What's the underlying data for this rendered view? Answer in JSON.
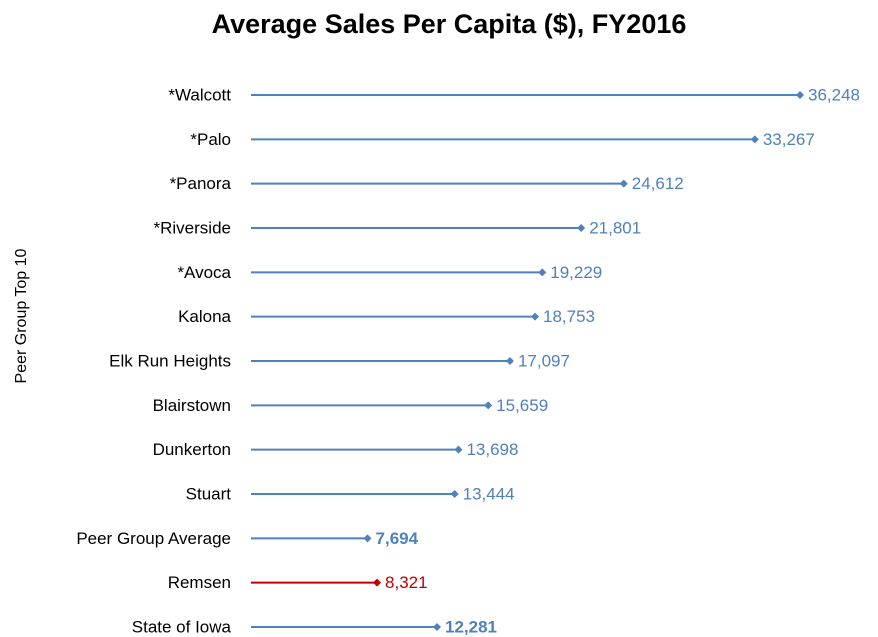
{
  "chart_data": {
    "type": "lollipop",
    "orientation": "horizontal",
    "title": "Average Sales Per Capita ($), FY2016",
    "y_label": "Peer Group Top 10",
    "categories": [
      "*Walcott",
      "*Palo",
      "*Panora",
      "*Riverside",
      "*Avoca",
      "Kalona",
      "Elk Run Heights",
      "Blairstown",
      "Dunkerton",
      "Stuart",
      "Peer Group Average",
      "Remsen",
      "State of Iowa"
    ],
    "values": [
      36248,
      33267,
      24612,
      21801,
      19229,
      18753,
      17097,
      15659,
      13698,
      13444,
      7694,
      8321,
      12281
    ],
    "value_labels": [
      "36,248",
      "33,267",
      "24,612",
      "21,801",
      "19,229",
      "18,753",
      "17,097",
      "15,659",
      "13,698",
      "13,444",
      "7,694",
      "8,321",
      "12,281"
    ],
    "colors": [
      "#4f81bd",
      "#4f81bd",
      "#4f81bd",
      "#4f81bd",
      "#4f81bd",
      "#4f81bd",
      "#4f81bd",
      "#4f81bd",
      "#4f81bd",
      "#4f81bd",
      "#4f81bd",
      "#c00000",
      "#4f81bd"
    ],
    "bold_value_labels": [
      false,
      false,
      false,
      false,
      false,
      false,
      false,
      false,
      false,
      false,
      true,
      false,
      true
    ]
  }
}
